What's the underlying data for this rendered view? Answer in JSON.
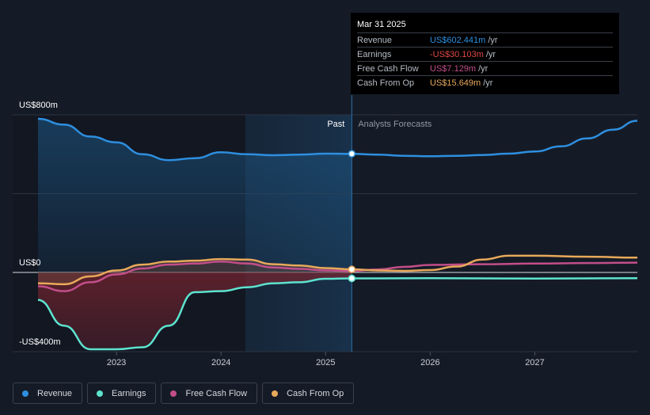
{
  "chart_data": {
    "type": "line",
    "title": "",
    "y_axis": {
      "labels": [
        "US$800m",
        "US$0",
        "-US$400m"
      ],
      "ylim": [
        -400,
        800
      ],
      "unit": "US$m"
    },
    "x_axis": {
      "ticks": [
        "2023",
        "2024",
        "2025",
        "2026",
        "2027"
      ],
      "xlim": [
        2022.25,
        2027.98
      ]
    },
    "past_label": "Past",
    "forecast_label": "Analysts Forecasts",
    "divider_x": 2025.25,
    "series": [
      {
        "name": "Revenue",
        "color": "#2e8fe0",
        "points": [
          [
            2022.25,
            780
          ],
          [
            2022.5,
            750
          ],
          [
            2022.75,
            690
          ],
          [
            2023.0,
            660
          ],
          [
            2023.25,
            600
          ],
          [
            2023.5,
            570
          ],
          [
            2023.75,
            580
          ],
          [
            2024.0,
            610
          ],
          [
            2024.25,
            600
          ],
          [
            2024.5,
            595
          ],
          [
            2024.75,
            598
          ],
          [
            2025.0,
            603
          ],
          [
            2025.25,
            602
          ],
          [
            2025.5,
            598
          ],
          [
            2025.75,
            592
          ],
          [
            2026.0,
            590
          ],
          [
            2026.25,
            592
          ],
          [
            2026.5,
            596
          ],
          [
            2026.75,
            603
          ],
          [
            2027.0,
            614
          ],
          [
            2027.25,
            640
          ],
          [
            2027.5,
            680
          ],
          [
            2027.75,
            725
          ],
          [
            2027.98,
            770
          ]
        ]
      },
      {
        "name": "Earnings",
        "color": "#5de3cf",
        "points": [
          [
            2022.25,
            -140
          ],
          [
            2022.5,
            -270
          ],
          [
            2022.75,
            -390
          ],
          [
            2023.0,
            -390
          ],
          [
            2023.25,
            -380
          ],
          [
            2023.5,
            -270
          ],
          [
            2023.75,
            -100
          ],
          [
            2024.0,
            -95
          ],
          [
            2024.25,
            -75
          ],
          [
            2024.5,
            -55
          ],
          [
            2024.75,
            -50
          ],
          [
            2025.0,
            -32
          ],
          [
            2025.25,
            -30
          ],
          [
            2025.5,
            -30
          ],
          [
            2026.0,
            -29
          ],
          [
            2026.5,
            -30
          ],
          [
            2027.0,
            -31
          ],
          [
            2027.5,
            -30
          ],
          [
            2027.98,
            -29
          ]
        ]
      },
      {
        "name": "Free Cash Flow",
        "color": "#c24e8a",
        "points": [
          [
            2022.25,
            -70
          ],
          [
            2022.5,
            -95
          ],
          [
            2022.75,
            -50
          ],
          [
            2023.0,
            -10
          ],
          [
            2023.25,
            20
          ],
          [
            2023.5,
            40
          ],
          [
            2023.75,
            45
          ],
          [
            2024.0,
            55
          ],
          [
            2024.25,
            45
          ],
          [
            2024.5,
            25
          ],
          [
            2024.75,
            18
          ],
          [
            2025.0,
            10
          ],
          [
            2025.25,
            7
          ],
          [
            2025.5,
            15
          ],
          [
            2025.75,
            28
          ],
          [
            2026.0,
            38
          ],
          [
            2026.5,
            42
          ],
          [
            2027.0,
            45
          ],
          [
            2027.5,
            48
          ],
          [
            2027.98,
            50
          ]
        ]
      },
      {
        "name": "Cash From Op",
        "color": "#e8a95a",
        "points": [
          [
            2022.25,
            -55
          ],
          [
            2022.5,
            -60
          ],
          [
            2022.75,
            -20
          ],
          [
            2023.0,
            10
          ],
          [
            2023.25,
            40
          ],
          [
            2023.5,
            55
          ],
          [
            2023.75,
            60
          ],
          [
            2024.0,
            68
          ],
          [
            2024.25,
            65
          ],
          [
            2024.5,
            42
          ],
          [
            2024.75,
            35
          ],
          [
            2025.0,
            22
          ],
          [
            2025.25,
            15.6
          ],
          [
            2025.5,
            10
          ],
          [
            2025.75,
            8
          ],
          [
            2026.0,
            12
          ],
          [
            2026.25,
            30
          ],
          [
            2026.5,
            65
          ],
          [
            2026.75,
            85
          ],
          [
            2027.0,
            85
          ],
          [
            2027.5,
            80
          ],
          [
            2027.98,
            75
          ]
        ]
      }
    ]
  },
  "tooltip": {
    "date": "Mar 31 2025",
    "rows": [
      {
        "label": "Revenue",
        "value": "US$602.441m",
        "unit": "/yr",
        "color": "#2e8fe0"
      },
      {
        "label": "Earnings",
        "value": "-US$30.103m",
        "unit": "/yr",
        "color": "#e04848"
      },
      {
        "label": "Free Cash Flow",
        "value": "US$7.129m",
        "unit": "/yr",
        "color": "#c24e8a"
      },
      {
        "label": "Cash From Op",
        "value": "US$15.649m",
        "unit": "/yr",
        "color": "#e8a95a"
      }
    ]
  },
  "legend": [
    {
      "label": "Revenue",
      "color": "#2e8fe0"
    },
    {
      "label": "Earnings",
      "color": "#5de3cf"
    },
    {
      "label": "Free Cash Flow",
      "color": "#c24e8a"
    },
    {
      "label": "Cash From Op",
      "color": "#e8a95a"
    }
  ]
}
